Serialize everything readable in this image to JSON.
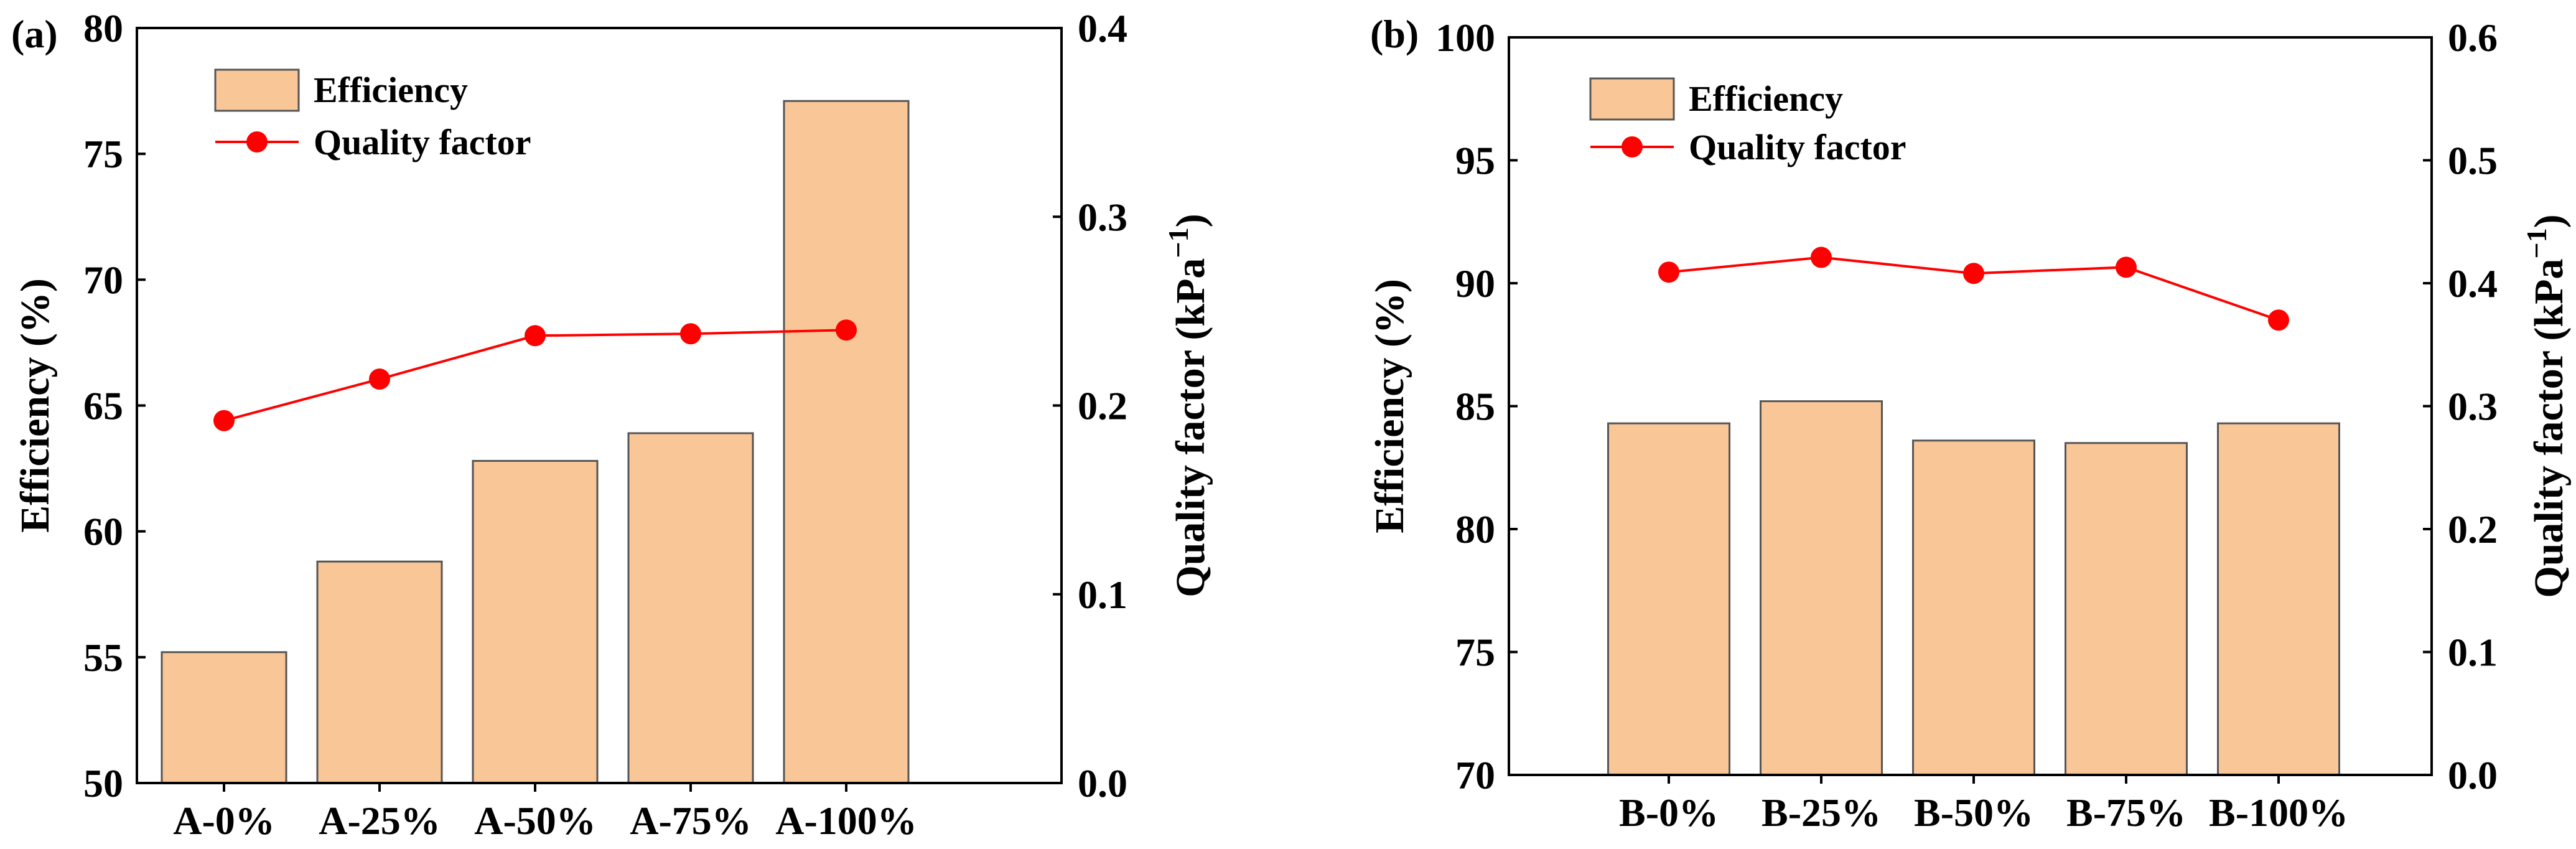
{
  "colors": {
    "bar_fill": "#F9C797",
    "bar_stroke": "#555555",
    "line": "#FF0000",
    "axis": "#000000"
  },
  "chart_data": [
    {
      "panel_label": "(a)",
      "type": "bar+line",
      "categories": [
        "A-0%",
        "A-25%",
        "A-50%",
        "A-75%",
        "A-100%"
      ],
      "series": [
        {
          "name": "Efficiency",
          "kind": "bar",
          "axis": "left",
          "values": [
            55.2,
            58.8,
            62.8,
            63.9,
            77.1
          ]
        },
        {
          "name": "Quality factor",
          "kind": "line",
          "axis": "right",
          "values": [
            0.192,
            0.214,
            0.237,
            0.238,
            0.24
          ]
        }
      ],
      "ylabel_left": "Efficiency (%)",
      "ylabel_right": "Quality factor (kPa",
      "ylabel_right_sup": "−1",
      "ylabel_right_close": ")",
      "ylim_left": [
        50,
        80
      ],
      "ylim_right": [
        0,
        0.4
      ],
      "yticks_left": [
        "50",
        "55",
        "60",
        "65",
        "70",
        "75",
        "80"
      ],
      "yticks_right": [
        "0.0",
        "0.1",
        "0.2",
        "0.3",
        "0.4"
      ],
      "legend_position": "top-left"
    },
    {
      "panel_label": "(b)",
      "type": "bar+line",
      "categories": [
        "B-0%",
        "B-25%",
        "B-50%",
        "B-75%",
        "B-100%"
      ],
      "series": [
        {
          "name": "Efficiency",
          "kind": "bar",
          "axis": "left",
          "values": [
            84.3,
            85.2,
            83.6,
            83.5,
            84.3
          ]
        },
        {
          "name": "Quality factor",
          "kind": "line",
          "axis": "right",
          "values": [
            0.409,
            0.421,
            0.408,
            0.413,
            0.37
          ]
        }
      ],
      "ylabel_left": "Efficiency (%)",
      "ylabel_right": "Quality factor (kPa",
      "ylabel_right_sup": "−1",
      "ylabel_right_close": ")",
      "ylim_left": [
        70,
        100
      ],
      "ylim_right": [
        0,
        0.6
      ],
      "yticks_left": [
        "70",
        "75",
        "80",
        "85",
        "90",
        "95",
        "100"
      ],
      "yticks_right": [
        "0.0",
        "0.1",
        "0.2",
        "0.3",
        "0.4",
        "0.5",
        "0.6"
      ],
      "legend_position": "top-left"
    }
  ]
}
